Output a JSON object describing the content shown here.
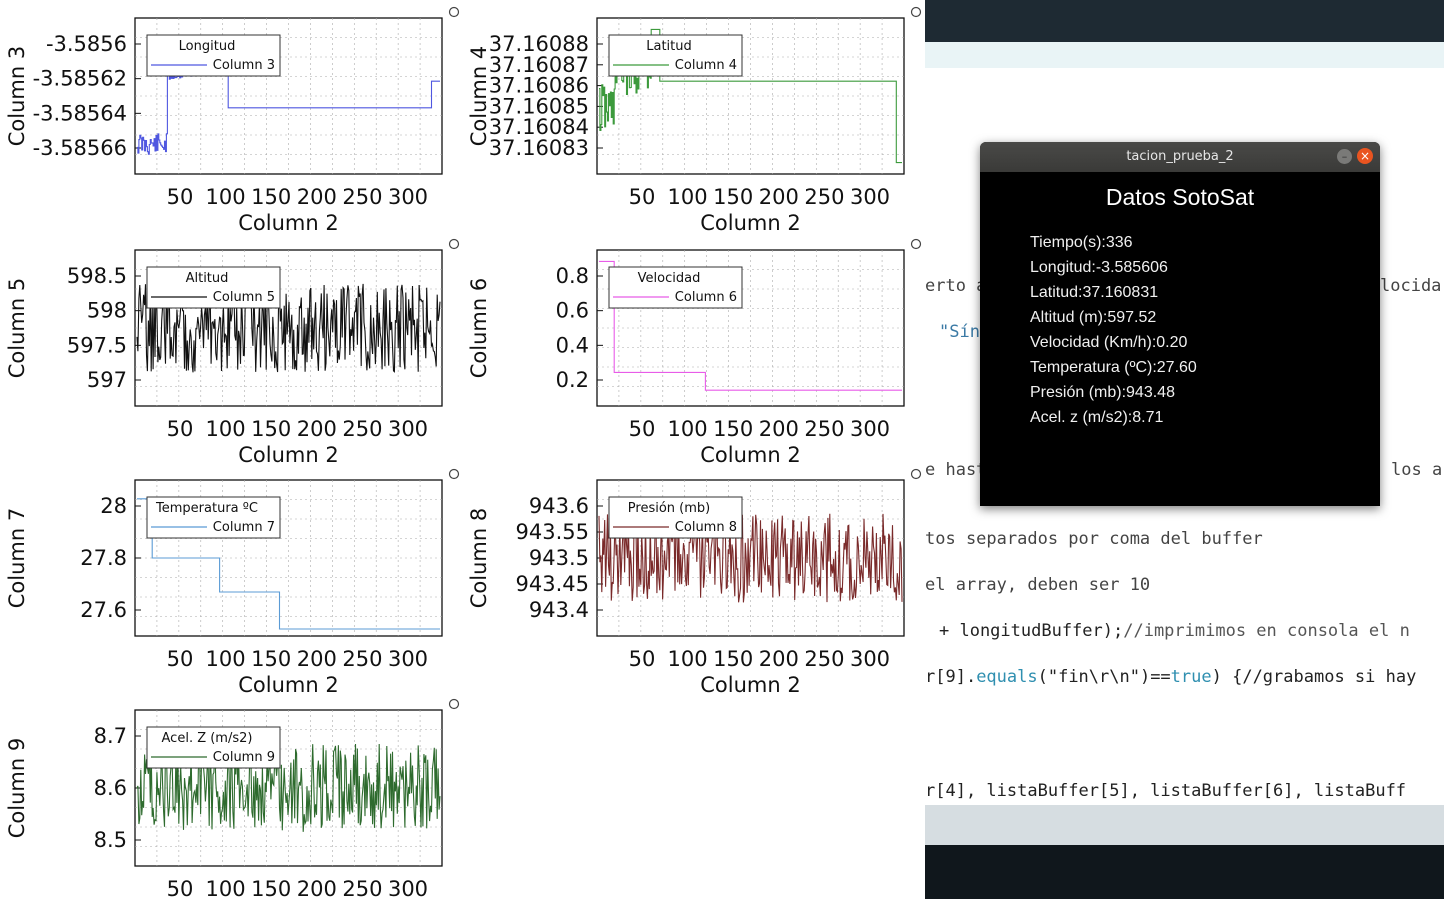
{
  "plots": [
    {
      "id": "plot-col3",
      "y_title": "Column 3",
      "x_title": "Column 2",
      "legend_title": "Longitud",
      "legend_series": "Column 3",
      "color": "#4f57e0",
      "yticks": [
        "-3.5856",
        "-3.58562",
        "-3.58564",
        "-3.58566"
      ],
      "xticks": [
        "50",
        "100",
        "150",
        "200",
        "250",
        "300"
      ]
    },
    {
      "id": "plot-col4",
      "y_title": "Column 4",
      "x_title": "Column 2",
      "legend_title": "Latitud",
      "legend_series": "Column 4",
      "color": "#3c9a3c",
      "yticks": [
        "37.16088",
        "37.16087",
        "37.16086",
        "37.16085",
        "37.16084",
        "37.16083"
      ],
      "xticks": [
        "50",
        "100",
        "150",
        "200",
        "250",
        "300"
      ]
    },
    {
      "id": "plot-col5",
      "y_title": "Column 5",
      "x_title": "Column 2",
      "legend_title": "Altitud",
      "legend_series": "Column 5",
      "color": "#111111",
      "yticks": [
        "598.5",
        "598",
        "597.5",
        "597"
      ],
      "xticks": [
        "50",
        "100",
        "150",
        "200",
        "250",
        "300"
      ]
    },
    {
      "id": "plot-col6",
      "y_title": "Column 6",
      "x_title": "Column 2",
      "legend_title": "Velocidad",
      "legend_series": "Column 6",
      "color": "#e85ce8",
      "yticks": [
        "0.8",
        "0.6",
        "0.4",
        "0.2"
      ],
      "xticks": [
        "50",
        "100",
        "150",
        "200",
        "250",
        "300"
      ]
    },
    {
      "id": "plot-col7",
      "y_title": "Column 7",
      "x_title": "Column 2",
      "legend_title": "Temperatura ºC",
      "legend_series": "Column 7",
      "color": "#5b9bd5",
      "yticks": [
        "28",
        "27.8",
        "27.6"
      ],
      "xticks": [
        "50",
        "100",
        "150",
        "200",
        "250",
        "300"
      ]
    },
    {
      "id": "plot-col8",
      "y_title": "Column 8",
      "x_title": "Column 2",
      "legend_title": "Presión (mb)",
      "legend_series": "Column 8",
      "color": "#7a2a2a",
      "yticks": [
        "943.6",
        "943.55",
        "943.5",
        "943.45",
        "943.4"
      ],
      "xticks": [
        "50",
        "100",
        "150",
        "200",
        "250",
        "300"
      ]
    },
    {
      "id": "plot-col9",
      "y_title": "Column 9",
      "x_title": "",
      "legend_title": "Acel. Z (m/s2)",
      "legend_series": "Column 9",
      "color": "#2e6b2e",
      "yticks": [
        "8.7",
        "8.6",
        "8.5"
      ],
      "xticks": [
        "50",
        "100",
        "150",
        "200",
        "250",
        "300"
      ]
    }
  ],
  "popup": {
    "window_title": "tacion_prueba_2",
    "heading": "Datos SotoSat",
    "lines": [
      "Tiempo(s):336",
      "Longitud:-3.585606",
      "Latitud:37.160831",
      "Altitud (m):597.52",
      "Velocidad (Km/h):0.20",
      "Temperatura (ºC):27.60",
      "Presión (mb):943.48",
      "Acel. z (m/s2):8.71"
    ],
    "minimize_glyph": "–",
    "close_glyph": "×"
  },
  "editor": {
    "line1_left": "erto a",
    "line1_right": "locida",
    "line2": "\"Sín",
    "line3_left": "e hast",
    "line3_right": "los a",
    "line4": "tos separados por coma del buffer",
    "line5": "el array, deben ser 10",
    "line6_a": "+ longitudBuffer);",
    "line6_b": "//imprimimos en consola el n",
    "line7_a": "r[9].",
    "line7_b": "equals",
    "line7_c": "(\"fin\\r\\n\")==",
    "line7_d": "true",
    "line7_e": ") {//grabamos si hay",
    "line8": "r[4], listaBuffer[5], listaBuffer[6], listaBuff"
  }
}
